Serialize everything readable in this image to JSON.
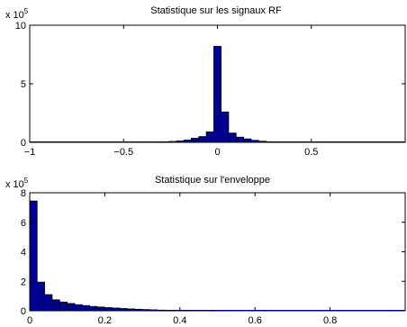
{
  "chart_data": [
    {
      "type": "bar",
      "title": "Statistique sur les signaux RF",
      "xlabel": "",
      "ylabel": "",
      "y_multiplier": "x 10",
      "y_multiplier_exp": "5",
      "xlim": [
        -1,
        1
      ],
      "ylim": [
        0,
        10
      ],
      "xticks": [
        "−1",
        "−0.5",
        "0",
        "0.5"
      ],
      "xtick_values": [
        -1,
        -0.5,
        0,
        0.5
      ],
      "yticks": [
        "0",
        "5",
        "10"
      ],
      "ytick_values": [
        0,
        5,
        10
      ],
      "bin_edges": [
        -0.34,
        -0.3,
        -0.26,
        -0.22,
        -0.18,
        -0.14,
        -0.1,
        -0.06,
        -0.02,
        0.02,
        0.06,
        0.1,
        0.14,
        0.18,
        0.22,
        0.26,
        0.3,
        0.34
      ],
      "values": [
        0.02,
        0.05,
        0.08,
        0.12,
        0.2,
        0.35,
        0.5,
        0.9,
        8.2,
        2.6,
        0.8,
        0.45,
        0.3,
        0.18,
        0.1,
        0.05,
        0.02
      ],
      "bar_color": "#00008f",
      "grid": false
    },
    {
      "type": "bar",
      "title": "Statistique sur l'enveloppe",
      "xlabel": "",
      "ylabel": "",
      "y_multiplier": "x 10",
      "y_multiplier_exp": "5",
      "xlim": [
        0,
        1
      ],
      "ylim": [
        0,
        8
      ],
      "xticks": [
        "0",
        "0.2",
        "0.4",
        "0.6",
        "0.8"
      ],
      "xtick_values": [
        0,
        0.2,
        0.4,
        0.6,
        0.8
      ],
      "yticks": [
        "0",
        "2",
        "4",
        "6",
        "8"
      ],
      "ytick_values": [
        0,
        2,
        4,
        6,
        8
      ],
      "bin_width": 0.02,
      "values": [
        7.45,
        1.95,
        1.1,
        0.75,
        0.6,
        0.5,
        0.42,
        0.36,
        0.3,
        0.26,
        0.22,
        0.19,
        0.16,
        0.13,
        0.11,
        0.09,
        0.07,
        0.05,
        0.04,
        0.03,
        0.02,
        0.015,
        0.01,
        0.008,
        0.005
      ],
      "bar_color": "#00008f",
      "grid": false
    }
  ]
}
